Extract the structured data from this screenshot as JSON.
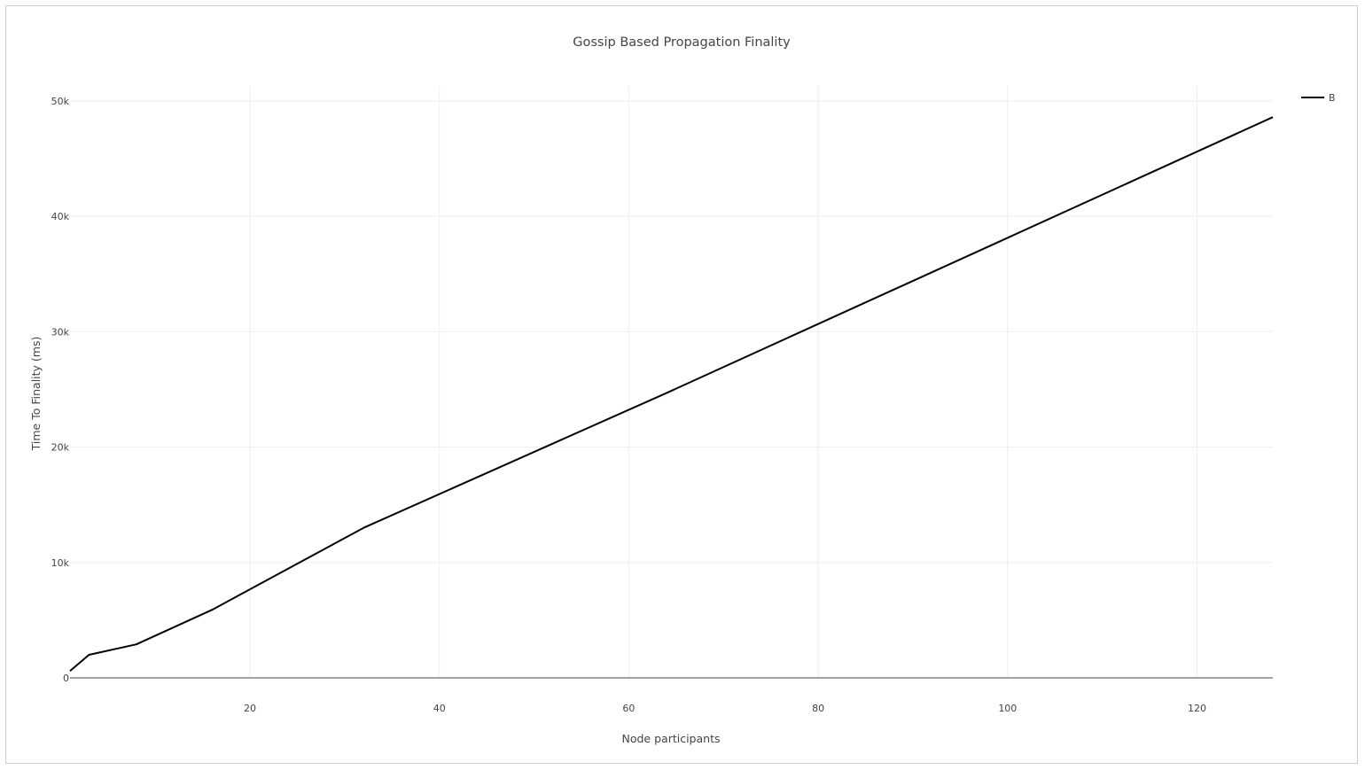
{
  "chart_data": {
    "type": "line",
    "title": "Gossip Based Propagation Finality",
    "xlabel": "Node participants",
    "ylabel": "Time To Finality (ms)",
    "xlim": [
      1,
      128
    ],
    "ylim": [
      0,
      51300
    ],
    "x_ticks": [
      20,
      40,
      60,
      80,
      100,
      120
    ],
    "x_tick_labels": [
      "20",
      "40",
      "60",
      "80",
      "100",
      "120"
    ],
    "y_ticks": [
      0,
      10000,
      20000,
      30000,
      40000,
      50000
    ],
    "y_tick_labels": [
      "0",
      "10k",
      "20k",
      "30k",
      "40k",
      "50k"
    ],
    "grid": true,
    "legend_position": "top-right",
    "series": [
      {
        "name": "B",
        "color": "#000000",
        "x": [
          1,
          3,
          8,
          16,
          32,
          64,
          128
        ],
        "y": [
          600,
          2000,
          2900,
          5900,
          13000,
          24700,
          48600
        ]
      }
    ]
  }
}
